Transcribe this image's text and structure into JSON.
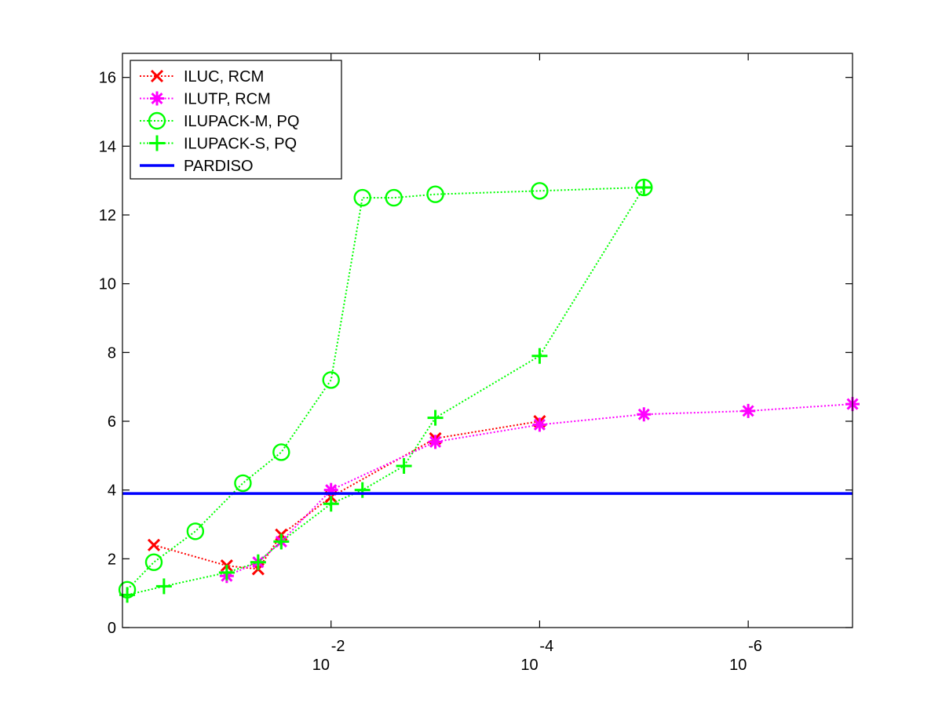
{
  "chart_data": {
    "type": "line",
    "title": "",
    "xlabel": "",
    "ylabel": "",
    "x_scale": "log",
    "x_reversed": true,
    "xlim": [
      1,
      1e-07
    ],
    "ylim": [
      0,
      16.7
    ],
    "x_ticks": [
      {
        "value": 0.01,
        "base": "10",
        "exponent": "-2"
      },
      {
        "value": 0.0001,
        "base": "10",
        "exponent": "-4"
      },
      {
        "value": 1e-06,
        "base": "10",
        "exponent": "-6"
      }
    ],
    "y_ticks": [
      0,
      2,
      4,
      6,
      8,
      10,
      12,
      14,
      16
    ],
    "grid": false,
    "legend_position": "top-left",
    "series": [
      {
        "name": "ILUC, RCM",
        "color": "#ff0000",
        "marker": "x",
        "x": [
          0.5,
          0.1,
          0.05,
          0.03,
          0.01,
          0.001,
          0.0001
        ],
        "y": [
          2.4,
          1.8,
          1.7,
          2.7,
          3.8,
          5.5,
          6.0
        ]
      },
      {
        "name": "ILUTP, RCM",
        "color": "#ff00ff",
        "marker": "star",
        "x": [
          0.1,
          0.05,
          0.03,
          0.01,
          0.001,
          0.0001,
          1e-05,
          1e-06,
          1e-07
        ],
        "y": [
          1.5,
          1.9,
          2.5,
          4.0,
          5.4,
          5.9,
          6.2,
          6.3,
          6.5
        ]
      },
      {
        "name": "ILUPACK-M, PQ",
        "color": "#00ff00",
        "marker": "circle",
        "x": [
          0.9,
          0.5,
          0.2,
          0.07,
          0.03,
          0.01,
          0.005,
          0.0025,
          0.001,
          0.0001,
          1e-05
        ],
        "y": [
          1.1,
          1.9,
          2.8,
          4.2,
          5.1,
          7.2,
          12.5,
          12.5,
          12.6,
          12.7,
          12.8
        ]
      },
      {
        "name": "ILUPACK-S, PQ",
        "color": "#00ff00",
        "marker": "plus",
        "x": [
          0.9,
          0.4,
          0.1,
          0.05,
          0.03,
          0.01,
          0.005,
          0.002,
          0.001,
          0.0001,
          1e-05
        ],
        "y": [
          0.95,
          1.2,
          1.6,
          1.9,
          2.5,
          3.6,
          4.0,
          4.7,
          6.1,
          7.9,
          12.8
        ]
      },
      {
        "name": "PARDISO",
        "color": "#0000ff",
        "marker": "none",
        "x": [
          1,
          1e-07
        ],
        "y": [
          3.9,
          3.9
        ]
      }
    ]
  }
}
